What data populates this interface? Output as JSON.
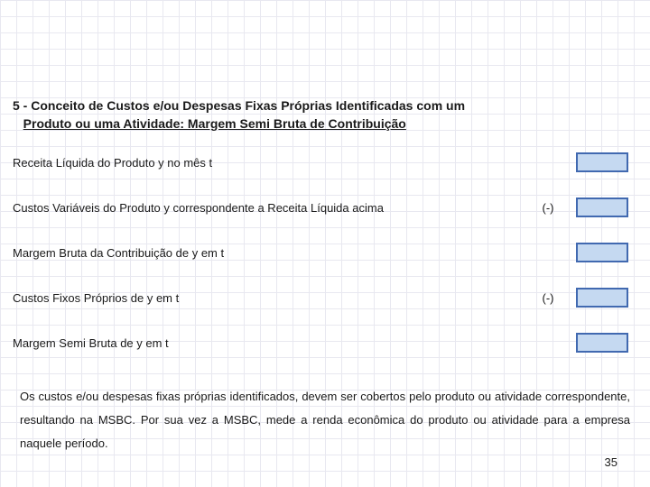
{
  "title_line1": "5 - Conceito de Custos e/ou Despesas Fixas Próprias Identificadas com um",
  "title_line2": "Produto ou uma Atividade: Margem Semi Bruta de Contribuição",
  "rows": [
    {
      "label": "Receita Líquida do Produto y no mês t",
      "sign": ""
    },
    {
      "label": "Custos Variáveis do Produto y correspondente a Receita Líquida acima",
      "sign": "(-)"
    },
    {
      "label": "Margem Bruta da Contribuição de y em t",
      "sign": ""
    },
    {
      "label": "Custos Fixos Próprios de y em t",
      "sign": "(-)"
    },
    {
      "label": "Margem Semi Bruta de y em t",
      "sign": ""
    }
  ],
  "footer": "Os custos e/ou despesas fixas próprias identificados, devem ser cobertos pelo produto ou atividade correspondente, resultando na MSBC. Por sua vez a MSBC, mede a renda econômica do produto ou atividade para a empresa naquele período.",
  "page_number": "35",
  "colors": {
    "grid": "#e8e8f0",
    "box_fill": "#c5d9f1",
    "box_border": "#4169b0",
    "text": "#1a1a1a",
    "background": "#ffffff"
  }
}
